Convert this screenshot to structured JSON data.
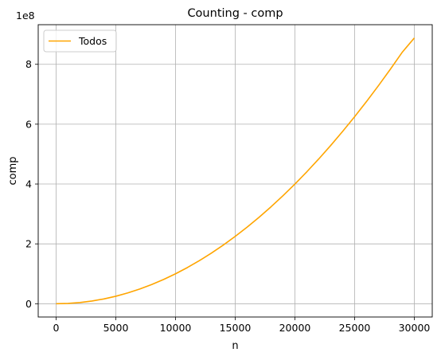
{
  "chart_data": {
    "type": "line",
    "title": "Counting - comp",
    "xlabel": "n",
    "ylabel": "comp",
    "y_scale_label": "1e8",
    "xlim": [
      -1500,
      31500
    ],
    "ylim": [
      -44400000,
      932400000
    ],
    "x_ticks": [
      0,
      5000,
      10000,
      15000,
      20000,
      25000,
      30000
    ],
    "y_ticks": [
      0,
      200000000,
      400000000,
      600000000,
      800000000
    ],
    "x_tick_labels": [
      "0",
      "5000",
      "10000",
      "15000",
      "20000",
      "25000",
      "30000"
    ],
    "y_tick_labels": [
      "0",
      "2",
      "4",
      "6",
      "8"
    ],
    "grid": true,
    "legend_position": "top-left",
    "colors": {
      "series": "#FFA500",
      "grid": "#B0B0B0",
      "axes": "#000000",
      "legend_border": "#CCCCCC"
    },
    "series": [
      {
        "name": "Todos",
        "x": [
          0,
          1000,
          2000,
          3000,
          4000,
          5000,
          6000,
          7000,
          8000,
          9000,
          10000,
          11000,
          12000,
          13000,
          14000,
          15000,
          16000,
          17000,
          18000,
          19000,
          20000,
          21000,
          22000,
          23000,
          24000,
          25000,
          26000,
          27000,
          28000,
          29000,
          30000
        ],
        "y": [
          0,
          1000000,
          4000000,
          9000000,
          16000000,
          25000000,
          36000000,
          49000000,
          64000000,
          81000000,
          100000000,
          121000000,
          144000000,
          169000000,
          196000000,
          225000000,
          256000000,
          289000000,
          324000000,
          361000000,
          400000000,
          441000000,
          484000000,
          529000000,
          576000000,
          625000000,
          676000000,
          729000000,
          784000000,
          841000000,
          888000000
        ]
      }
    ]
  }
}
